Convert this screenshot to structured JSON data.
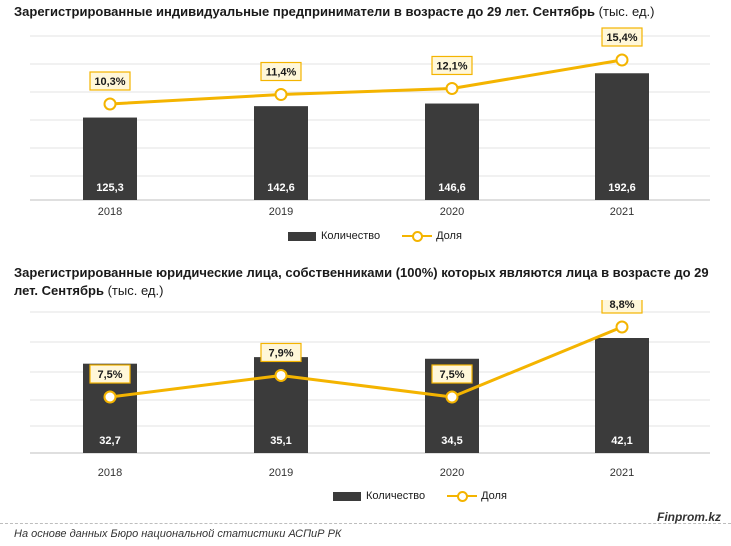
{
  "charts": [
    {
      "title_bold": "Зарегистрированные индивидуальные предприниматели в возрасте до 29 лет. Сентябрь",
      "title_unit": " (тыс. ед.)",
      "legend": {
        "bar": "Количество",
        "line": "Доля"
      },
      "colors": {
        "bar": "#3b3b3b",
        "line": "#f4b400"
      },
      "chart_data": {
        "type": "bar",
        "categories": [
          "2018",
          "2019",
          "2020",
          "2021"
        ],
        "series": [
          {
            "name": "Количество",
            "type": "bar",
            "values": [
              125.3,
              142.6,
              146.6,
              192.6
            ],
            "labels": [
              "125,3",
              "142,6",
              "146,6",
              "192,6"
            ]
          },
          {
            "name": "Доля",
            "type": "line",
            "values": [
              10.3,
              11.4,
              12.1,
              15.4
            ],
            "labels": [
              "10,3%",
              "11,4%",
              "12,1%",
              "15,4%"
            ]
          }
        ],
        "grid": true,
        "legend_position": "bottom"
      }
    },
    {
      "title_bold": "Зарегистрированные юридические лица, собственниками (100%) которых являются лица в возрасте до 29 лет. Сентябрь",
      "title_unit": " (тыс. ед.)",
      "legend": {
        "bar": "Количество",
        "line": "Доля"
      },
      "colors": {
        "bar": "#3b3b3b",
        "line": "#f4b400"
      },
      "chart_data": {
        "type": "bar",
        "categories": [
          "2018",
          "2019",
          "2020",
          "2021"
        ],
        "series": [
          {
            "name": "Количество",
            "type": "bar",
            "values": [
              32.7,
              35.1,
              34.5,
              42.1
            ],
            "labels": [
              "32,7",
              "35,1",
              "34,5",
              "42,1"
            ]
          },
          {
            "name": "Доля",
            "type": "line",
            "values": [
              7.5,
              7.9,
              7.5,
              8.8
            ],
            "labels": [
              "7,5%",
              "7,9%",
              "7,5%",
              "8,8%"
            ]
          }
        ],
        "grid": true,
        "legend_position": "bottom"
      }
    }
  ],
  "footer": {
    "source": "На основе данных Бюро национальной статистики АСПиР РК",
    "brand": "Finprom.kz"
  }
}
